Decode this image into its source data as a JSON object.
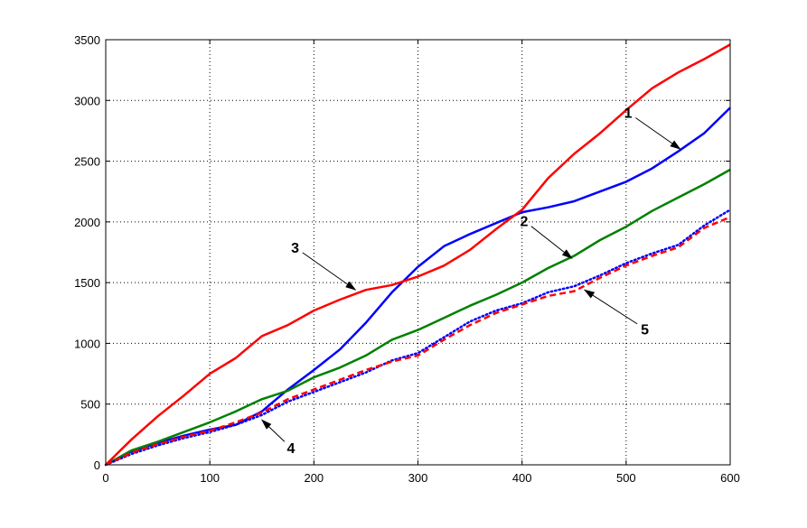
{
  "chart_data": {
    "type": "line",
    "title": "",
    "xlabel": "",
    "ylabel": "",
    "xlim": [
      0,
      600
    ],
    "ylim": [
      0,
      3500
    ],
    "xticks": [
      0,
      100,
      200,
      300,
      400,
      500,
      600
    ],
    "yticks": [
      0,
      500,
      1000,
      1500,
      2000,
      2500,
      3000,
      3500
    ],
    "xtick_labels": [
      "0",
      "100",
      "200",
      "300",
      "400",
      "500",
      "600"
    ],
    "ytick_labels": [
      "0",
      "500",
      "1000",
      "1500",
      "2000",
      "2500",
      "3000",
      "3500"
    ],
    "grid": true,
    "legend": "none",
    "series": [
      {
        "label": "1",
        "color": "#0000ff",
        "style": "solid",
        "x": [
          0,
          25,
          50,
          75,
          100,
          125,
          150,
          175,
          200,
          225,
          250,
          275,
          300,
          325,
          350,
          375,
          400,
          425,
          450,
          475,
          500,
          525,
          550,
          575,
          600
        ],
        "y": [
          0,
          110,
          180,
          240,
          290,
          330,
          440,
          620,
          780,
          950,
          1170,
          1420,
          1630,
          1800,
          1900,
          1990,
          2080,
          2120,
          2170,
          2250,
          2330,
          2440,
          2580,
          2730,
          2940
        ]
      },
      {
        "label": "2",
        "color": "#008000",
        "style": "solid",
        "x": [
          0,
          25,
          50,
          75,
          100,
          125,
          150,
          175,
          200,
          225,
          250,
          275,
          300,
          325,
          350,
          375,
          400,
          425,
          450,
          475,
          500,
          525,
          550,
          575,
          600
        ],
        "y": [
          0,
          120,
          190,
          270,
          350,
          440,
          540,
          610,
          720,
          800,
          900,
          1030,
          1110,
          1210,
          1310,
          1400,
          1500,
          1620,
          1720,
          1850,
          1960,
          2090,
          2200,
          2310,
          2430
        ]
      },
      {
        "label": "3",
        "color": "#ff0000",
        "style": "solid",
        "x": [
          0,
          25,
          50,
          75,
          100,
          125,
          150,
          175,
          200,
          225,
          250,
          275,
          300,
          325,
          350,
          375,
          400,
          425,
          450,
          475,
          500,
          525,
          550,
          575,
          600
        ],
        "y": [
          0,
          210,
          400,
          570,
          750,
          880,
          1060,
          1150,
          1270,
          1360,
          1440,
          1480,
          1550,
          1640,
          1770,
          1940,
          2100,
          2360,
          2560,
          2730,
          2920,
          3100,
          3230,
          3340,
          3460
        ]
      },
      {
        "label": "4",
        "color": "#0000ff",
        "style": "dotted",
        "x": [
          0,
          25,
          50,
          75,
          100,
          125,
          150,
          175,
          200,
          225,
          250,
          275,
          300,
          325,
          350,
          375,
          400,
          425,
          450,
          475,
          500,
          525,
          550,
          575,
          600
        ],
        "y": [
          0,
          90,
          160,
          220,
          270,
          330,
          410,
          520,
          600,
          680,
          760,
          860,
          920,
          1050,
          1180,
          1270,
          1330,
          1420,
          1470,
          1560,
          1660,
          1740,
          1810,
          1970,
          2100
        ]
      },
      {
        "label": "5",
        "color": "#ff0000",
        "style": "dashed",
        "x": [
          0,
          25,
          50,
          75,
          100,
          125,
          150,
          175,
          200,
          225,
          250,
          275,
          300,
          325,
          350,
          375,
          400,
          425,
          450,
          475,
          500,
          525,
          550,
          575,
          600
        ],
        "y": [
          0,
          100,
          170,
          230,
          280,
          350,
          430,
          540,
          620,
          700,
          780,
          850,
          900,
          1030,
          1150,
          1250,
          1320,
          1390,
          1430,
          1540,
          1640,
          1720,
          1790,
          1950,
          2040
        ]
      }
    ],
    "annotations": [
      {
        "text": "1",
        "label_x": 502,
        "label_y": 2900,
        "arrow_to_x": 552,
        "arrow_to_y": 2600
      },
      {
        "text": "2",
        "label_x": 402,
        "label_y": 2010,
        "arrow_to_x": 448,
        "arrow_to_y": 1700
      },
      {
        "text": "3",
        "label_x": 182,
        "label_y": 1790,
        "arrow_to_x": 240,
        "arrow_to_y": 1440
      },
      {
        "text": "4",
        "label_x": 178,
        "label_y": 140,
        "arrow_to_x": 150,
        "arrow_to_y": 370
      },
      {
        "text": "5",
        "label_x": 518,
        "label_y": 1120,
        "arrow_to_x": 460,
        "arrow_to_y": 1440
      }
    ]
  }
}
